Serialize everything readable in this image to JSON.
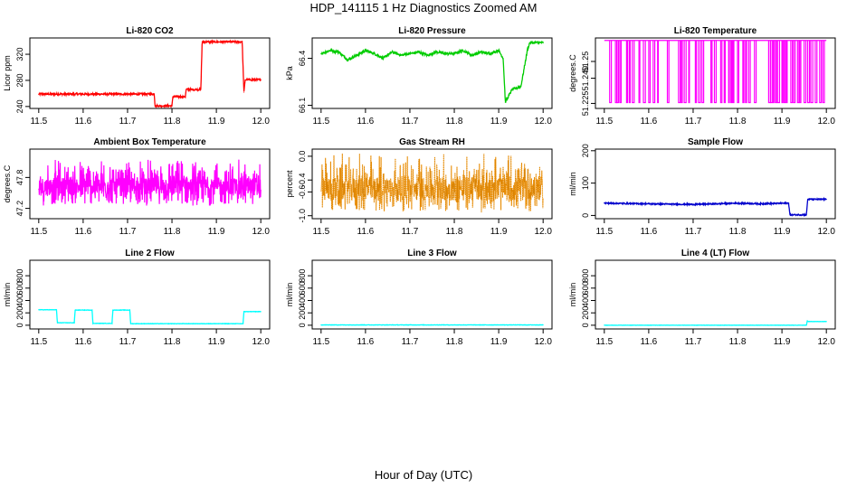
{
  "page": {
    "title": "HDP_141115  1 Hz Diagnostics Zoomed AM",
    "xlabel": "Hour of Day (UTC)"
  },
  "chart_data": [
    {
      "type": "line",
      "title": "Li-820 CO2",
      "ylabel": "Licor ppm",
      "color": "#ff0000",
      "xlim": [
        11.5,
        12.0
      ],
      "ylim": [
        237,
        345
      ],
      "x_ticks": [
        "11.5",
        "11.6",
        "11.7",
        "11.8",
        "11.9",
        "12.0"
      ],
      "y_ticks": [
        240,
        280,
        320
      ],
      "noise": 1.5,
      "series": [
        {
          "x": [
            11.5,
            11.76,
            11.762,
            11.8,
            11.802,
            11.83,
            11.832,
            11.865,
            11.868,
            11.955,
            11.958,
            11.962,
            11.965,
            12.0
          ],
          "y": [
            259,
            259,
            241,
            241,
            255,
            255,
            266,
            266,
            339,
            339,
            340,
            262,
            281,
            281
          ]
        }
      ]
    },
    {
      "type": "line",
      "title": "Li-820 Pressure",
      "ylabel": "kPa",
      "color": "#00cc00",
      "xlim": [
        11.5,
        12.0
      ],
      "ylim": [
        66.08,
        66.53
      ],
      "x_ticks": [
        "11.5",
        "11.6",
        "11.7",
        "11.8",
        "11.9",
        "12.0"
      ],
      "y_ticks": [
        66.1,
        66.4
      ],
      "y_tick_labels": [
        "66.1",
        "66.4"
      ],
      "noise": 0.008,
      "series": [
        {
          "x": [
            11.5,
            11.52,
            11.54,
            11.56,
            11.58,
            11.6,
            11.62,
            11.64,
            11.66,
            11.68,
            11.7,
            11.72,
            11.74,
            11.76,
            11.78,
            11.8,
            11.82,
            11.84,
            11.86,
            11.88,
            11.9,
            11.91,
            11.915,
            11.93,
            11.95,
            11.955,
            11.965,
            11.97,
            12.0
          ],
          "y": [
            66.43,
            66.45,
            66.44,
            66.39,
            66.42,
            66.45,
            66.43,
            66.4,
            66.44,
            66.42,
            66.43,
            66.44,
            66.42,
            66.44,
            66.43,
            66.43,
            66.45,
            66.42,
            66.44,
            66.43,
            66.45,
            66.4,
            66.12,
            66.2,
            66.22,
            66.3,
            66.46,
            66.5,
            66.5
          ]
        }
      ]
    },
    {
      "type": "line",
      "title": "Li-820 Temperature",
      "ylabel": "degrees.C",
      "color": "#ff00ff",
      "xlim": [
        11.5,
        12.0
      ],
      "ylim": [
        51.222,
        51.264
      ],
      "x_ticks": [
        "11.5",
        "11.6",
        "11.7",
        "11.8",
        "11.9",
        "12.0"
      ],
      "y_ticks": [
        51.225,
        51.24,
        51.25
      ],
      "y_tick_labels": [
        "51.225",
        "51.240",
        "51.25"
      ],
      "high": 51.2625,
      "low": 51.2255,
      "drops": [
        11.512,
        11.525,
        11.528,
        11.535,
        11.55,
        11.556,
        11.563,
        11.578,
        11.588,
        11.6,
        11.61,
        11.62,
        11.642,
        11.667,
        11.673,
        11.68,
        11.69,
        11.705,
        11.712,
        11.72,
        11.74,
        11.748,
        11.762,
        11.77,
        11.78,
        11.785,
        11.79,
        11.8,
        11.812,
        11.818,
        11.825,
        11.838,
        11.87,
        11.875,
        11.88,
        11.885,
        11.89,
        11.9,
        11.905,
        11.91,
        11.92,
        11.926,
        11.935,
        11.94,
        11.95,
        11.958,
        11.965,
        11.975,
        11.985,
        11.992
      ]
    },
    {
      "type": "line",
      "title": "Ambient Box Temperature",
      "ylabel": "degrees.C",
      "color": "#ff00ff",
      "xlim": [
        11.5,
        12.0
      ],
      "ylim": [
        47.0,
        48.35
      ],
      "x_ticks": [
        "11.5",
        "11.6",
        "11.7",
        "11.8",
        "11.9",
        "12.0"
      ],
      "y_ticks": [
        47.2,
        47.8
      ],
      "noise_band": [
        47.25,
        48.15
      ],
      "center": 47.62
    },
    {
      "type": "scatter",
      "title": "Gas Stream RH",
      "ylabel": "percent",
      "color": "#ff9900",
      "xlim": [
        11.5,
        12.0
      ],
      "ylim": [
        -1.05,
        0.12
      ],
      "x_ticks": [
        "11.5",
        "11.6",
        "11.7",
        "11.8",
        "11.9",
        "12.0"
      ],
      "y_ticks": [
        -1.0,
        -0.6,
        -0.4,
        0.0
      ],
      "y_tick_labels": [
        "-1.0",
        "-0.6",
        "-0.4",
        "0.0"
      ],
      "noise_band": [
        -0.95,
        0.05
      ],
      "center": -0.55
    },
    {
      "type": "line",
      "title": "Sample Flow",
      "ylabel": "ml/min",
      "color": "#0000cc",
      "xlim": [
        11.5,
        12.0
      ],
      "ylim": [
        -10,
        205
      ],
      "x_ticks": [
        "11.5",
        "11.6",
        "11.7",
        "11.8",
        "11.9",
        "12.0"
      ],
      "y_ticks": [
        0,
        100,
        200
      ],
      "noise": 2.0,
      "series": [
        {
          "x": [
            11.5,
            11.6,
            11.7,
            11.75,
            11.8,
            11.85,
            11.915,
            11.918,
            11.955,
            11.958,
            12.0
          ],
          "y": [
            38,
            36,
            34,
            36,
            38,
            36,
            38,
            2,
            2,
            50,
            50
          ]
        }
      ]
    },
    {
      "type": "line",
      "title": "Line 2 Flow",
      "ylabel": "ml/min",
      "color": "#00ffff",
      "xlim": [
        11.5,
        12.0
      ],
      "ylim": [
        -60,
        1050
      ],
      "x_ticks": [
        "11.5",
        "11.6",
        "11.7",
        "11.8",
        "11.9",
        "12.0"
      ],
      "y_ticks": [
        0,
        200,
        400,
        600,
        800
      ],
      "noise": 3,
      "series": [
        {
          "x": [
            11.5,
            11.54,
            11.542,
            11.58,
            11.582,
            11.62,
            11.622,
            11.665,
            11.667,
            11.705,
            11.707,
            11.96,
            11.962,
            12.0
          ],
          "y": [
            250,
            250,
            40,
            40,
            245,
            245,
            30,
            30,
            245,
            245,
            25,
            25,
            220,
            220
          ]
        }
      ]
    },
    {
      "type": "line",
      "title": "Line 3 Flow",
      "ylabel": "ml/min",
      "color": "#00ffff",
      "xlim": [
        11.5,
        12.0
      ],
      "ylim": [
        -60,
        1050
      ],
      "x_ticks": [
        "11.5",
        "11.6",
        "11.7",
        "11.8",
        "11.9",
        "12.0"
      ],
      "y_ticks": [
        0,
        200,
        400,
        600,
        800
      ],
      "noise": 3,
      "series": [
        {
          "x": [
            11.5,
            12.0
          ],
          "y": [
            5,
            5
          ]
        }
      ]
    },
    {
      "type": "line",
      "title": "Line 4 (LT) Flow",
      "ylabel": "ml/min",
      "color": "#00ffff",
      "xlim": [
        11.5,
        12.0
      ],
      "ylim": [
        -60,
        1050
      ],
      "x_ticks": [
        "11.5",
        "11.6",
        "11.7",
        "11.8",
        "11.9",
        "12.0"
      ],
      "y_ticks": [
        0,
        200,
        400,
        600,
        800
      ],
      "noise": 2,
      "series": [
        {
          "x": [
            11.5,
            11.955,
            11.957,
            11.96,
            11.962,
            12.0
          ],
          "y": [
            0,
            0,
            70,
            60,
            60,
            60
          ]
        }
      ]
    }
  ]
}
